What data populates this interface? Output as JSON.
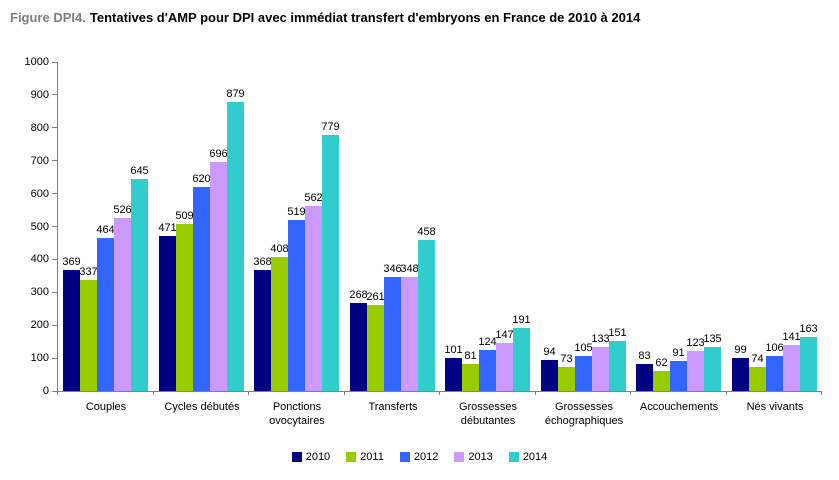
{
  "title": {
    "label": "Figure DPI4.",
    "text": "Tentatives d'AMP pour DPI avec immédiat transfert d'embryons en France de 2010 à 2014"
  },
  "chart_data": {
    "type": "bar",
    "grouped": true,
    "title": "Tentatives d'AMP pour DPI avec immédiat transfert d'embryons en France de 2010 à 2014",
    "xlabel": "",
    "ylabel": "",
    "ylim": [
      0,
      1000
    ],
    "ytick_step": 100,
    "yticks": [
      0,
      100,
      200,
      300,
      400,
      500,
      600,
      700,
      800,
      900,
      1000
    ],
    "grid": false,
    "bar_value_labels": true,
    "legend_position": "bottom",
    "axis_color": "#808080",
    "title_label_color": "#7F7F7F",
    "categories": [
      "Couples",
      "Cycles débutés",
      "Ponctions ovocytaires",
      "Transferts",
      "Grossesses débutantes",
      "Grossesses échographiques",
      "Accouchements",
      "Nés vivants"
    ],
    "series": [
      {
        "name": "2010",
        "color": "#000080",
        "values": [
          369,
          471,
          368,
          268,
          101,
          94,
          83,
          99
        ]
      },
      {
        "name": "2011",
        "color": "#99CC00",
        "values": [
          337,
          509,
          408,
          261,
          81,
          73,
          62,
          74
        ]
      },
      {
        "name": "2012",
        "color": "#3366FF",
        "values": [
          464,
          620,
          519,
          346,
          124,
          105,
          91,
          106
        ]
      },
      {
        "name": "2013",
        "color": "#CC99FF",
        "values": [
          526,
          696,
          562,
          348,
          147,
          133,
          123,
          141
        ]
      },
      {
        "name": "2014",
        "color": "#33CCCC",
        "values": [
          645,
          879,
          779,
          458,
          191,
          151,
          135,
          163
        ]
      }
    ]
  }
}
